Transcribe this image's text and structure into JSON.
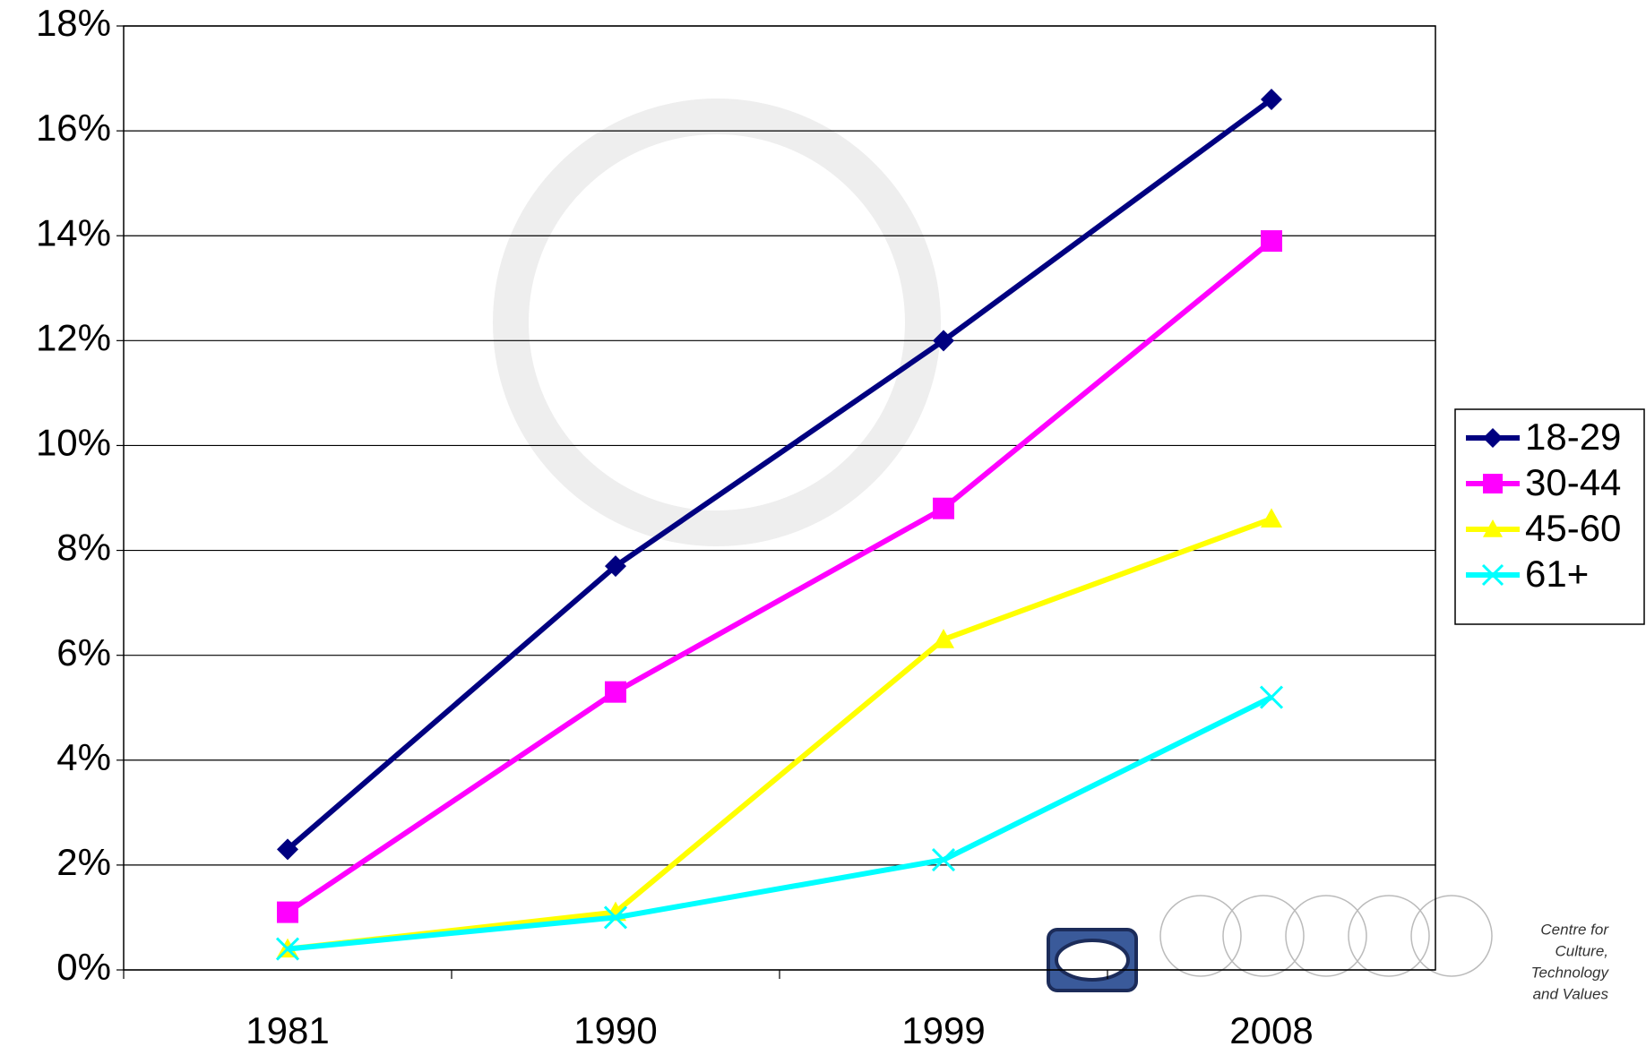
{
  "chart_data": {
    "type": "line",
    "categories": [
      "1981",
      "1990",
      "1999",
      "2008"
    ],
    "series": [
      {
        "name": "18-29",
        "color": "#000080",
        "marker": "diamond",
        "values": [
          2.3,
          7.7,
          12.0,
          16.6
        ]
      },
      {
        "name": "30-44",
        "color": "#ff00ff",
        "marker": "square",
        "values": [
          1.1,
          5.3,
          8.8,
          13.9
        ]
      },
      {
        "name": "45-60",
        "color": "#ffff00",
        "marker": "triangle",
        "values": [
          0.4,
          1.1,
          6.3,
          8.6
        ]
      },
      {
        "name": "61+",
        "color": "#00ffff",
        "marker": "x",
        "values": [
          0.4,
          1.0,
          2.1,
          5.2
        ]
      }
    ],
    "ylim": [
      0,
      18
    ],
    "yticks": [
      {
        "value": 0,
        "label": "0%"
      },
      {
        "value": 2,
        "label": "2%"
      },
      {
        "value": 4,
        "label": "4%"
      },
      {
        "value": 6,
        "label": "6%"
      },
      {
        "value": 8,
        "label": "8%"
      },
      {
        "value": 10,
        "label": "10%"
      },
      {
        "value": 12,
        "label": "12%"
      },
      {
        "value": 14,
        "label": "14%"
      },
      {
        "value": 16,
        "label": "16%"
      },
      {
        "value": 18,
        "label": "18%"
      }
    ],
    "grid": true,
    "legend": "right",
    "annotations": [
      "Centre for",
      "Culture,",
      "Technology",
      "and Values"
    ]
  }
}
